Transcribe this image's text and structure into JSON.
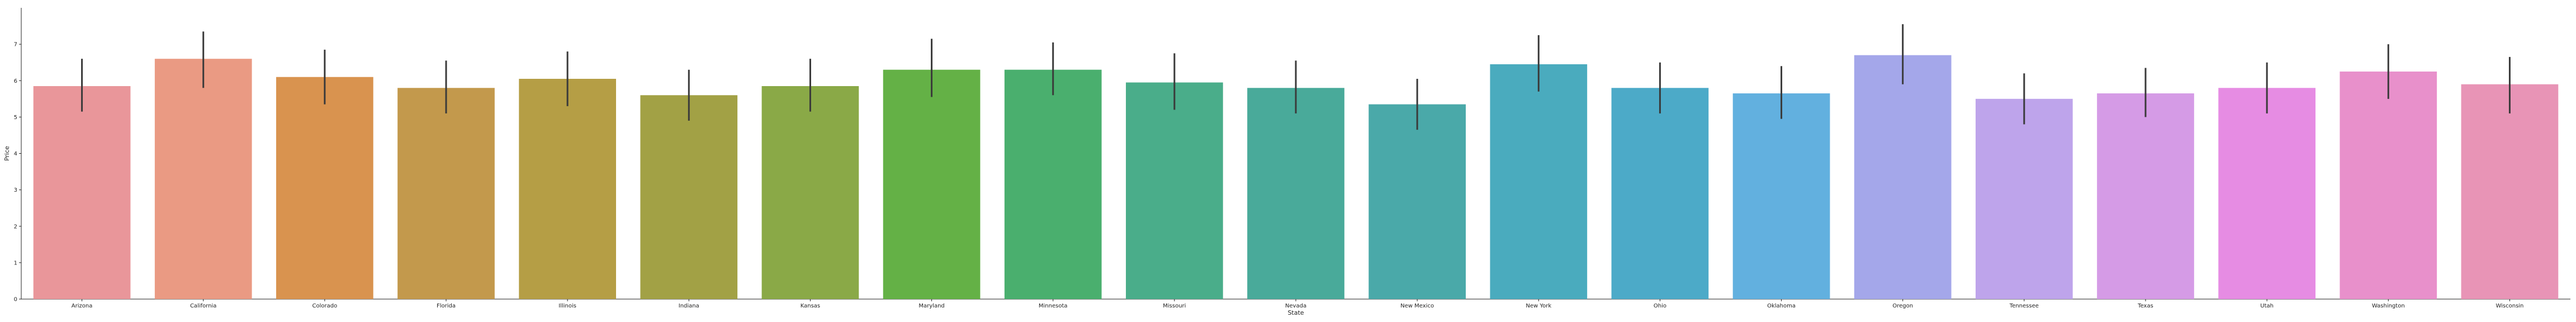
{
  "chart_data": {
    "type": "bar",
    "xlabel": "State",
    "ylabel": "Price",
    "ylim": [
      0,
      8
    ],
    "yticks": [
      0,
      1,
      2,
      3,
      4,
      5,
      6,
      7
    ],
    "categories": [
      "Arizona",
      "California",
      "Colorado",
      "Florida",
      "Illinois",
      "Indiana",
      "Kansas",
      "Maryland",
      "Minnesota",
      "Missouri",
      "Nevada",
      "New Mexico",
      "New York",
      "Ohio",
      "Oklahoma",
      "Oregon",
      "Tennessee",
      "Texas",
      "Utah",
      "Washington",
      "Wisconsin"
    ],
    "values": [
      5.85,
      6.6,
      6.1,
      5.8,
      6.05,
      5.6,
      5.85,
      6.3,
      6.3,
      5.95,
      5.8,
      5.35,
      6.45,
      5.8,
      5.65,
      6.7,
      5.5,
      5.65,
      5.8,
      6.25,
      5.9
    ],
    "ci_low": [
      5.15,
      5.8,
      5.35,
      5.1,
      5.3,
      4.9,
      5.15,
      5.55,
      5.6,
      5.2,
      5.1,
      4.65,
      5.7,
      5.1,
      4.95,
      5.9,
      4.8,
      5.0,
      5.1,
      5.5,
      5.1
    ],
    "ci_high": [
      6.6,
      7.35,
      6.85,
      6.55,
      6.8,
      6.3,
      6.6,
      7.15,
      7.05,
      6.75,
      6.55,
      6.05,
      7.25,
      6.5,
      6.4,
      7.55,
      6.2,
      6.35,
      6.5,
      7.0,
      6.65
    ],
    "colors": [
      "#e9969a",
      "#ea9a83",
      "#d9934f",
      "#c3994c",
      "#b59e45",
      "#a2a145",
      "#8aa947",
      "#64b146",
      "#4aaf6e",
      "#4aad8a",
      "#49aa9a",
      "#4aa9a9",
      "#4aabbe",
      "#4caac8",
      "#62b0df",
      "#a4a7ea",
      "#bea4eb",
      "#d59be6",
      "#e68ce3",
      "#e890cb",
      "#e894b6"
    ]
  }
}
